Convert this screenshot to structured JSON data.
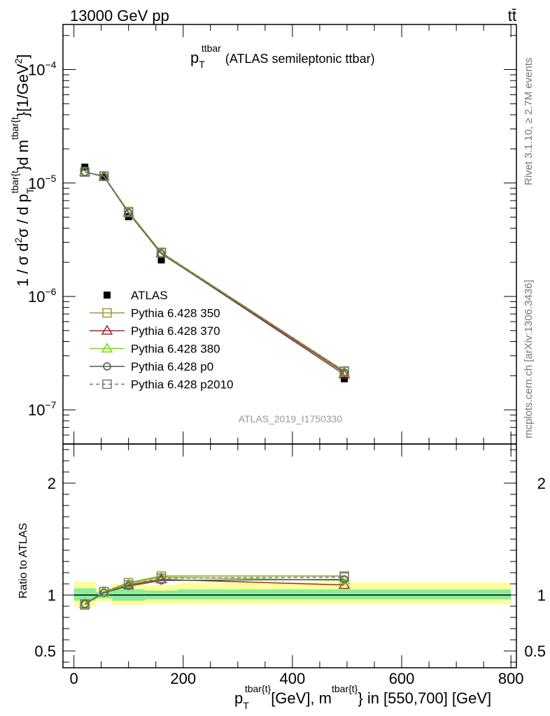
{
  "header": {
    "left": "13000 GeV pp",
    "right": "tt̄"
  },
  "plot_title": {
    "p": "p",
    "sub": "T",
    "sup": "ttbar",
    "rest": "(ATLAS semileptonic ttbar)"
  },
  "side": {
    "rivet": "Rivet 3.1.10, ≥ 2.7M events",
    "mcplots": "mcplots.cern.ch [arXiv:1306.3436]"
  },
  "watermark": "ATLAS_2019_I1750330",
  "y_label_main": {
    "a": "1 / σ d",
    "b": "2",
    "c": "σ / d p",
    "d": "T",
    "e": "tbar{t",
    "f": "}d m",
    "g": "tbar{t",
    "h": "}[1/GeV",
    "i": "2",
    "j": "]"
  },
  "y_label_ratio": "Ratio to ATLAS",
  "x_label": {
    "p": "p",
    "sub": "T",
    "sup1": "tbar{t}",
    "mid": "[GeV], m",
    "sup2": "tbar{t}",
    "rest": "} in [550,700] [GeV]"
  },
  "chart_data": [
    {
      "type": "line",
      "panel": "main",
      "yscale": "log",
      "xlim": [
        -20,
        810
      ],
      "ylim": [
        5e-08,
        0.00025
      ],
      "ytick_labels": [
        {
          "value": 1e-07,
          "base": "10",
          "exp": "−7"
        },
        {
          "value": 1e-06,
          "base": "10",
          "exp": "−6"
        },
        {
          "value": 1e-05,
          "base": "10",
          "exp": "−5"
        },
        {
          "value": 0.0001,
          "base": "10",
          "exp": "−4"
        }
      ],
      "x": [
        20,
        55,
        100,
        160,
        495
      ],
      "series": [
        {
          "name": "ATLAS",
          "color": "#000000",
          "marker": "filled-square",
          "values": [
            1.38e-05,
            1.12e-05,
            5.05e-06,
            2.1e-06,
            1.88e-07
          ]
        },
        {
          "name": "Pythia 6.428 350",
          "color": "#999933",
          "marker": "open-square",
          "values": [
            1.25e-05,
            1.15e-05,
            5.6e-06,
            2.45e-06,
            2.2e-07
          ]
        },
        {
          "name": "Pythia 6.428 370",
          "color": "#aa2233",
          "marker": "open-triangle",
          "values": [
            1.25e-05,
            1.14e-05,
            5.5e-06,
            2.4e-06,
            2.05e-07
          ]
        },
        {
          "name": "Pythia 6.428 380",
          "color": "#77dd00",
          "marker": "open-triangle",
          "values": [
            1.25e-05,
            1.14e-05,
            5.55e-06,
            2.43e-06,
            2.12e-07
          ]
        },
        {
          "name": "Pythia 6.428 p0",
          "color": "#555555",
          "marker": "open-circle",
          "values": [
            1.25e-05,
            1.14e-05,
            5.45e-06,
            2.38e-06,
            2.14e-07
          ]
        },
        {
          "name": "Pythia 6.428 p2010",
          "color": "#777777",
          "marker": "open-square-dashed",
          "values": [
            1.25e-05,
            1.15e-05,
            5.5e-06,
            2.42e-06,
            2.18e-07
          ]
        }
      ]
    },
    {
      "type": "line",
      "panel": "ratio",
      "xlim": [
        -20,
        810
      ],
      "ylim": [
        0.35,
        2.35
      ],
      "yticks": [
        0.5,
        1,
        2
      ],
      "ytick_labels": [
        "0.5",
        "1",
        "2"
      ],
      "xticks": [
        0,
        200,
        400,
        600,
        800
      ],
      "xtick_labels": [
        "0",
        "200",
        "400",
        "600",
        "800"
      ],
      "bands": [
        {
          "x": [
            0,
            40
          ],
          "yellow": [
            0.9,
            1.12
          ],
          "green": [
            0.95,
            1.06
          ]
        },
        {
          "x": [
            40,
            70
          ],
          "yellow": [
            0.94,
            1.06
          ],
          "green": [
            0.97,
            1.03
          ]
        },
        {
          "x": [
            70,
            130
          ],
          "yellow": [
            0.91,
            1.1
          ],
          "green": [
            0.95,
            1.05
          ]
        },
        {
          "x": [
            130,
            190
          ],
          "yellow": [
            0.92,
            1.09
          ],
          "green": [
            0.96,
            1.04
          ]
        },
        {
          "x": [
            190,
            800
          ],
          "yellow": [
            0.92,
            1.11
          ],
          "green": [
            0.96,
            1.05
          ]
        }
      ],
      "x": [
        20,
        55,
        100,
        160,
        495
      ],
      "series": [
        {
          "name": "Pythia 6.428 350",
          "color": "#999933",
          "values": [
            0.91,
            1.03,
            1.11,
            1.17,
            1.17
          ]
        },
        {
          "name": "Pythia 6.428 370",
          "color": "#aa2233",
          "values": [
            0.92,
            1.03,
            1.09,
            1.14,
            1.09
          ]
        },
        {
          "name": "Pythia 6.428 380",
          "color": "#77dd00",
          "values": [
            0.92,
            1.03,
            1.1,
            1.16,
            1.13
          ]
        },
        {
          "name": "Pythia 6.428 p0",
          "color": "#555555",
          "values": [
            0.92,
            1.02,
            1.08,
            1.13,
            1.14
          ]
        },
        {
          "name": "Pythia 6.428 p2010",
          "color": "#777777",
          "values": [
            0.92,
            1.03,
            1.09,
            1.15,
            1.16
          ]
        }
      ]
    }
  ]
}
